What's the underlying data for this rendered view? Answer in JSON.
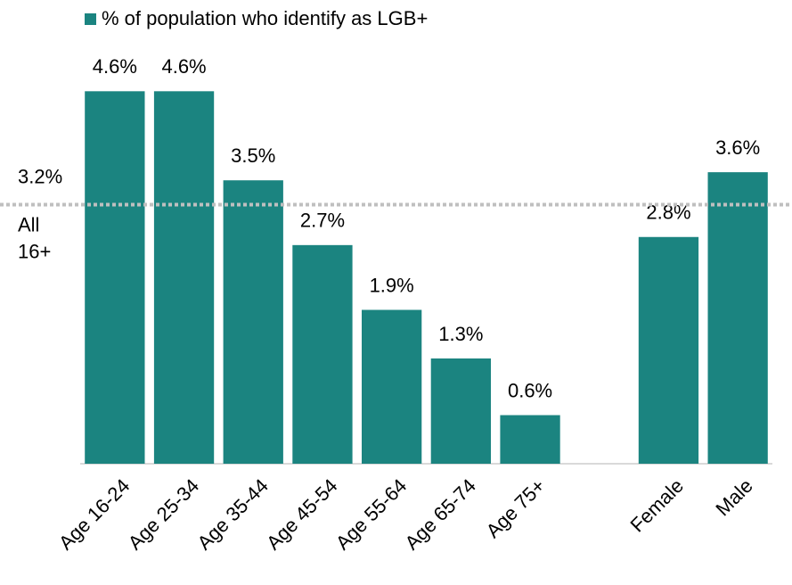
{
  "chart_data": {
    "type": "bar",
    "legend": "% of population who identify as LGB+",
    "color": "#1b8480",
    "categories": [
      "Age 16-24",
      "Age 25-34",
      "Age 35-44",
      "Age 45-54",
      "Age 55-64",
      "Age 65-74",
      "Age 75+",
      null,
      "Female",
      "Male"
    ],
    "values": [
      4.6,
      4.6,
      3.5,
      2.7,
      1.9,
      1.3,
      0.6,
      null,
      2.8,
      3.6
    ],
    "value_labels": [
      "4.6%",
      "4.6%",
      "3.5%",
      "2.7%",
      "1.9%",
      "1.3%",
      "0.6%",
      null,
      "2.8%",
      "3.6%"
    ],
    "ylim": [
      0,
      5
    ],
    "reference_line": {
      "value": 3.2,
      "label": "3.2%",
      "name_lines": [
        "All",
        "16+"
      ]
    }
  }
}
